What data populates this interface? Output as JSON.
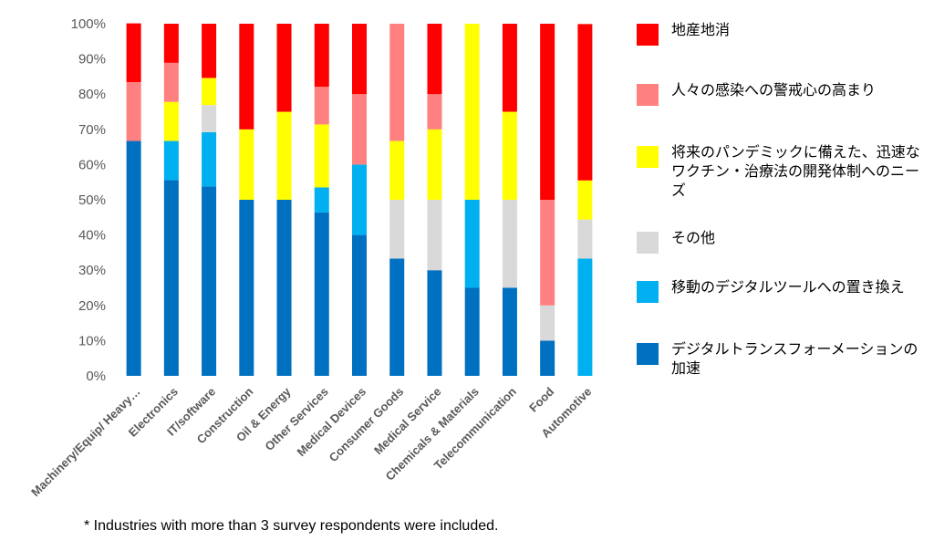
{
  "chart_data": {
    "type": "bar",
    "stacked": true,
    "categories": [
      "Machinery/Equip/ Heavy…",
      "Electronics",
      "IT/software",
      "Construction",
      "Oil & Energy",
      "Other Services",
      "Medical Devices",
      "Consumer Goods",
      "Medical Service",
      "Chemicals & Materials",
      "Telecommunication",
      "Food",
      "Automotive"
    ],
    "ylim": [
      0,
      100
    ],
    "yticks": [
      "0%",
      "10%",
      "20%",
      "30%",
      "40%",
      "50%",
      "60%",
      "70%",
      "80%",
      "90%",
      "100%"
    ],
    "grid": false,
    "legend_position": "right",
    "series": [
      {
        "name": "デジタルトランスフォーメーションの加速",
        "color": "#0070c0",
        "values": [
          66.7,
          55.6,
          53.8,
          50,
          50,
          46.4,
          40,
          33.3,
          30,
          25,
          25,
          10,
          0
        ]
      },
      {
        "name": "移動のデジタルツールへの置き換え",
        "color": "#00b0f0",
        "values": [
          0,
          11.1,
          15.4,
          0,
          0,
          7.1,
          20,
          0,
          0,
          25,
          0,
          0,
          33.3
        ]
      },
      {
        "name": "その他",
        "color": "#d9d9d9",
        "values": [
          0,
          0,
          7.7,
          0,
          0,
          0,
          0,
          16.7,
          20,
          0,
          25,
          10,
          11.1
        ]
      },
      {
        "name": "将来のパンデミックに備えた、迅速なワクチン・治療法の開発体制へのニーズ",
        "color": "#ffff00",
        "values": [
          0,
          11.1,
          7.7,
          20,
          25,
          17.9,
          0,
          16.7,
          20,
          50,
          25,
          0,
          11.1
        ]
      },
      {
        "name": "人々の感染への警戒心の高まり",
        "color": "#ff8080",
        "values": [
          16.7,
          11.1,
          0,
          0,
          0,
          10.7,
          20,
          33.3,
          10,
          0,
          0,
          30,
          0
        ]
      },
      {
        "name": "地産地消",
        "color": "#ff0000",
        "values": [
          16.7,
          11.1,
          15.4,
          30,
          25,
          17.9,
          20,
          0,
          20,
          0,
          25,
          50,
          44.4
        ]
      }
    ]
  },
  "legend": [
    {
      "label": "地産地消",
      "color": "#ff0000"
    },
    {
      "label": "人々の感染への警戒心の高まり",
      "color": "#ff8080"
    },
    {
      "label": "将来のパンデミックに備えた、迅速なワクチン・治療法の開発体制へのニーズ",
      "color": "#ffff00"
    },
    {
      "label": "その他",
      "color": "#d9d9d9"
    },
    {
      "label": "移動のデジタルツールへの置き換え",
      "color": "#00b0f0"
    },
    {
      "label": "デジタルトランスフォーメーションの加速",
      "color": "#0070c0"
    }
  ],
  "footnote": "* Industries with more than 3 survey respondents were included."
}
